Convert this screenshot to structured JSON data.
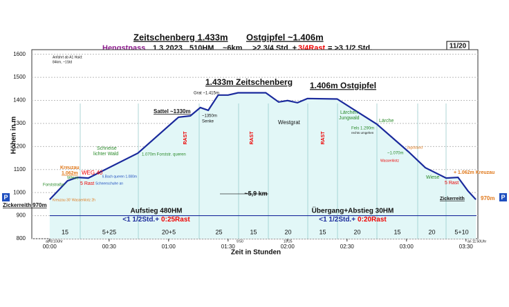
{
  "chart_data": {
    "type": "area",
    "title": "Zeitschenberg 1.433m",
    "title2": "Ostgipfel ~1.406m",
    "subtitle": {
      "place": "Hengstpass",
      "date": "1.3.2023",
      "hm": "510HM",
      "km": "~6km",
      "time": ">2 3/4 Std. +",
      "rast": "3/4Rast",
      "total": "= >3 1/2 Std."
    },
    "page": "11/20",
    "x_label": "Zeit in Stunden",
    "y_label": "Höhen in m",
    "x": [
      0,
      9,
      14,
      19.5,
      44.5,
      65,
      71,
      76,
      80,
      85,
      90,
      95,
      109,
      115.5,
      120,
      125,
      130,
      145,
      165,
      181,
      189.5,
      200,
      206,
      211,
      215
    ],
    "values": [
      970,
      1051,
      1066,
      1063,
      1171,
      1327,
      1333,
      1369,
      1357,
      1423,
      1423,
      1433,
      1433,
      1393,
      1399,
      1390,
      1408,
      1406,
      1297,
      1177,
      1108,
      1063,
      1066,
      1007,
      970
    ],
    "color": "#1a2a9c",
    "fill": "#e2f7f7",
    "xlim": [
      -9,
      216
    ],
    "ylim": [
      800,
      1620
    ],
    "xticks": [
      {
        "value": 0,
        "label": "00:00"
      },
      {
        "value": 30,
        "label": "00:30"
      },
      {
        "value": 60,
        "label": "01:00"
      },
      {
        "value": 90,
        "label": "01:30"
      },
      {
        "value": 120,
        "label": "02:00"
      },
      {
        "value": 150,
        "label": "02:30"
      },
      {
        "value": 180,
        "label": "03:00"
      },
      {
        "value": 210,
        "label": "03:30"
      }
    ],
    "yticks": [
      800,
      900,
      1000,
      1100,
      1200,
      1300,
      1400,
      1500,
      1600
    ],
    "grid": true,
    "segments": [
      "15",
      "5+25",
      "20+5",
      "25",
      "15",
      "20",
      "15",
      "20",
      "15",
      "20",
      "5+10"
    ],
    "summary": [
      {
        "head": "Aufstieg 480HM",
        "time": "<1 1/2Std.+",
        "rast": "0:25Rast"
      },
      {
        "head": "Übergang+Abstieg 30HM",
        "time": "<1 1/2Std.+",
        "rast": "0:20Rast"
      }
    ],
    "distance": "~5,9 km",
    "parking": "P",
    "annotations": [
      "Anfahrt ab A1 Haid:",
      "84km, ~1Std",
      "Zickerreith 970m",
      "Kreuzau 30' Wasserklotz 2h",
      "Forststraße",
      "Kreuzau",
      "1.062m",
      "Wiese",
      "WEG 40",
      "5 Rast",
      "Schneeschuhe an",
      "Schneise",
      "lichter Wald",
      "li.Bach queren 1.080m",
      "1.070m Forststr. queren",
      "Sattel ~1330m",
      "~1350m",
      "Senke",
      "Grat ~1.415m",
      "1.433m Zeitschenberg",
      "1.406m Ostgipfel",
      "Westgrat",
      "Lärchen",
      "Jungwald",
      "Lärche",
      "Fels 1.290m",
      "rechts umgehen",
      "Jagdstand",
      "~1.070m",
      "Wasserklotz",
      "Wiese",
      "5 Rast",
      "+ 1.062m Kreuzau",
      "Zickerreith",
      "970m",
      "ab 8:10Uhr",
      "9:50",
      "10:25",
      "an 11:50Uhr",
      "RAST",
      "RAST",
      "RAST"
    ]
  }
}
